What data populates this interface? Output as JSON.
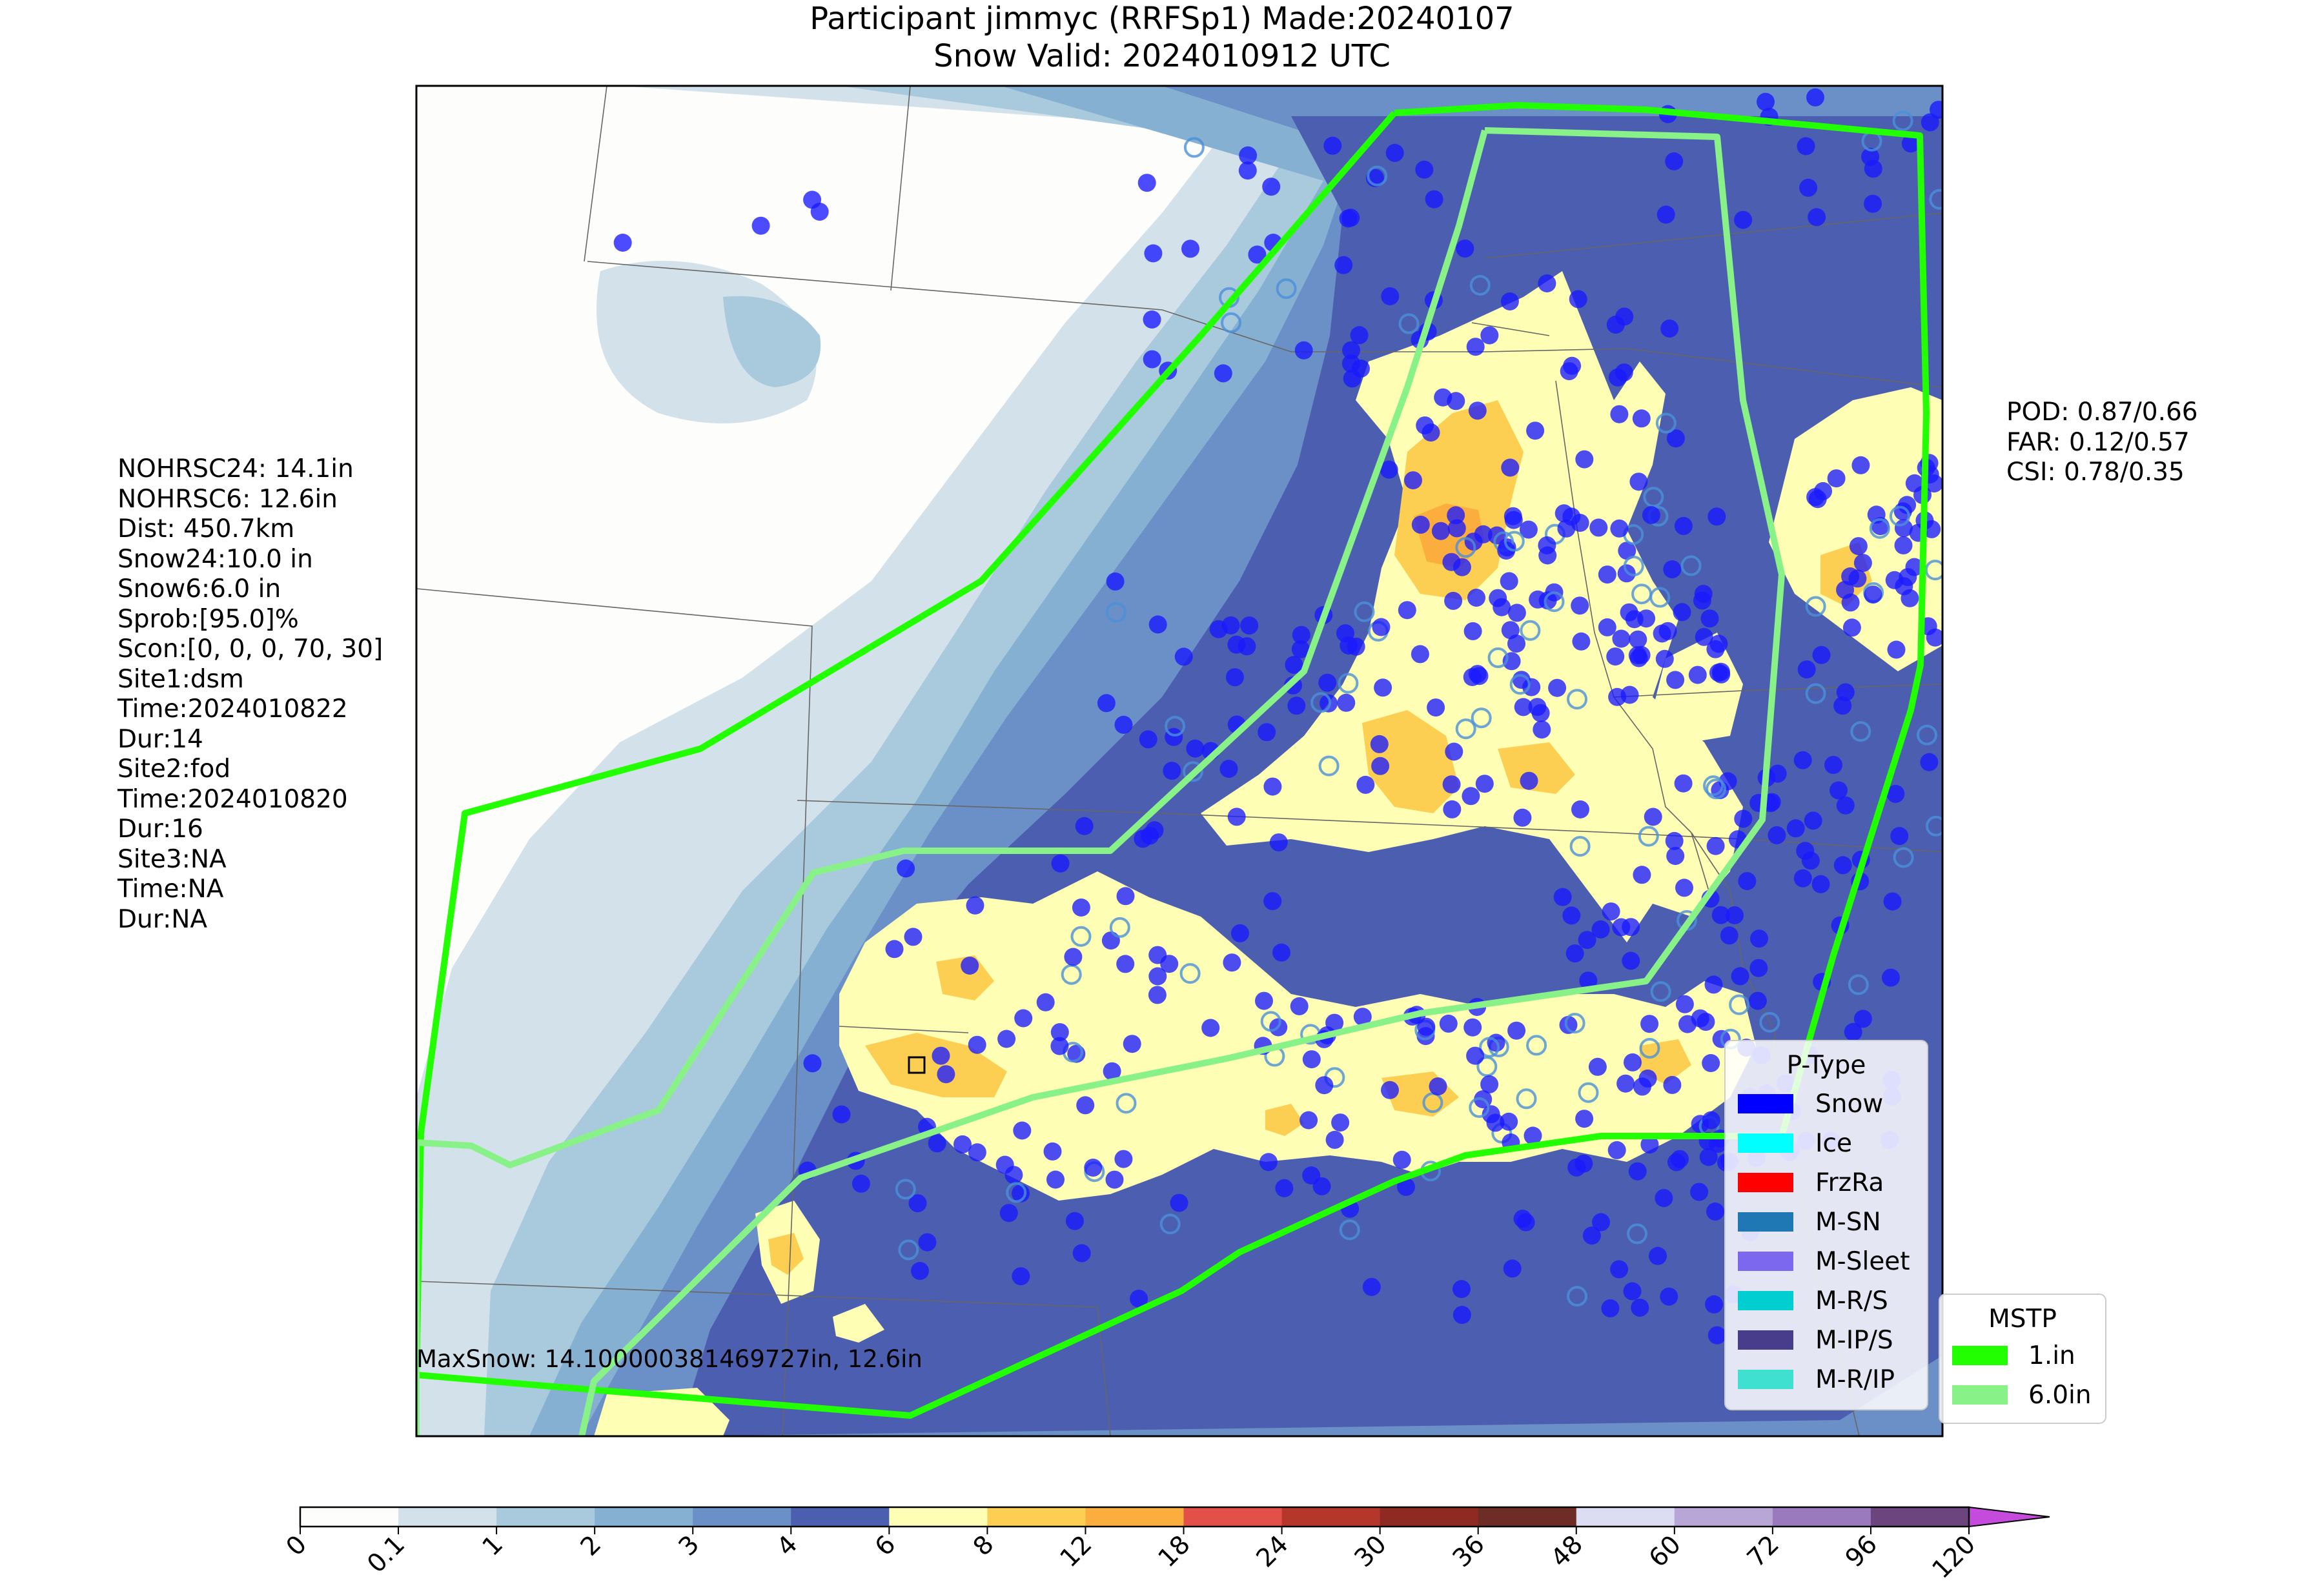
{
  "title": {
    "line1": "Participant jimmyc (RRFSp1) Made:20240107",
    "line2": "Snow Valid: 2024010912 UTC"
  },
  "left_stats": [
    "NOHRSC24: 14.1in",
    "NOHRSC6: 12.6in",
    "Dist: 450.7km",
    "Snow24:10.0 in",
    "Snow6:6.0 in",
    "Sprob:[95.0]%",
    "Scon:[0, 0, 0, 70, 30]",
    "Site1:dsm",
    "Time:2024010822",
    "Dur:14",
    "Site2:fod",
    "Time:2024010820",
    "Dur:16",
    "Site3:NA",
    "Time:NA",
    "Dur:NA"
  ],
  "right_stats": [
    "POD: 0.87/0.66",
    "FAR: 0.12/0.57",
    "CSI: 0.78/0.35"
  ],
  "map": {
    "maxsnow_label": "MaxSnow: 14.100000381469727in, 12.6in"
  },
  "ptype_legend": {
    "title": "P-Type",
    "items": [
      {
        "label": "Snow",
        "color": "#0000ff"
      },
      {
        "label": "Ice",
        "color": "#00ffff"
      },
      {
        "label": "FrzRa",
        "color": "#ff0000"
      },
      {
        "label": "M-SN",
        "color": "#1f77b4"
      },
      {
        "label": "M-Sleet",
        "color": "#7b68ee"
      },
      {
        "label": "M-R/S",
        "color": "#00ced1"
      },
      {
        "label": "M-IP/S",
        "color": "#483d8b"
      },
      {
        "label": "M-R/IP",
        "color": "#40e0d0"
      }
    ]
  },
  "mstp_legend": {
    "title": "MSTP",
    "items": [
      {
        "label": "1.in",
        "color": "#22ff00"
      },
      {
        "label": "6.0in",
        "color": "#88f288"
      }
    ]
  },
  "colorbar": {
    "ticks": [
      "0",
      "0.1",
      "1",
      "2",
      "3",
      "4",
      "6",
      "8",
      "12",
      "18",
      "24",
      "30",
      "36",
      "48",
      "60",
      "72",
      "96",
      "120"
    ],
    "colors": [
      "#fdfdfb",
      "#d3e2ea",
      "#a9c9dc",
      "#86b0d2",
      "#6b8fc7",
      "#4c5eaf",
      "#fefeb4",
      "#fccf52",
      "#fbae3d",
      "#e3504a",
      "#b5362b",
      "#8f2a22",
      "#6e2c27",
      "#dcdcf2",
      "#b8a6d6",
      "#9b79bd",
      "#6c457e"
    ],
    "extend_color": "#c44bdc"
  }
}
